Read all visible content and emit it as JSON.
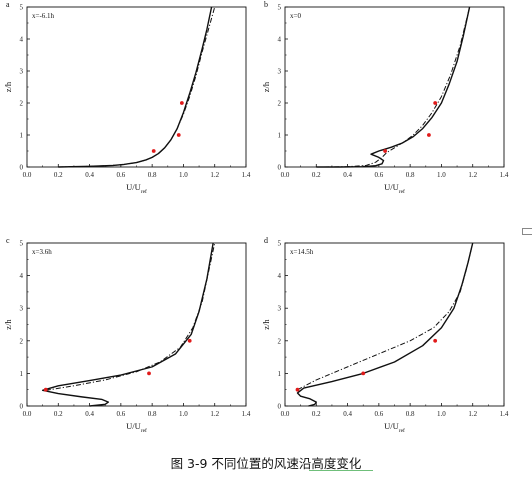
{
  "caption": "图 3-9  不同位置的风速沿高度变化",
  "chart_data": [
    {
      "type": "line",
      "panel": "a",
      "annotation": "x=-6.1h",
      "xlabel": "U/U",
      "xlabel_sub": "ref",
      "ylabel": "z/h",
      "xlim": [
        0,
        1.4
      ],
      "ylim": [
        0,
        5
      ],
      "xticks": [
        "0.0",
        "0.2",
        "0.4",
        "0.6",
        "0.8",
        "1.0",
        "1.2",
        "1.4"
      ],
      "yticks": [
        "0",
        "1",
        "2",
        "3",
        "4",
        "5"
      ],
      "series": [
        {
          "style": "solid",
          "x": [
            0.2,
            0.4,
            0.55,
            0.62,
            0.7,
            0.76,
            0.8,
            0.84,
            0.88,
            0.92,
            0.96,
            1.0,
            1.04,
            1.08,
            1.12,
            1.15,
            1.18
          ],
          "y": [
            0.0,
            0.02,
            0.05,
            0.08,
            0.14,
            0.22,
            0.3,
            0.42,
            0.6,
            0.85,
            1.2,
            1.7,
            2.3,
            2.95,
            3.7,
            4.3,
            5.0
          ]
        },
        {
          "style": "dashdot",
          "x": [
            0.2,
            0.4,
            0.55,
            0.62,
            0.7,
            0.76,
            0.8,
            0.84,
            0.88,
            0.92,
            0.96,
            1.0,
            1.04,
            1.08,
            1.12,
            1.16,
            1.2
          ],
          "y": [
            0.0,
            0.02,
            0.05,
            0.08,
            0.14,
            0.22,
            0.3,
            0.42,
            0.6,
            0.85,
            1.2,
            1.65,
            2.2,
            2.85,
            3.6,
            4.3,
            5.0
          ]
        },
        {
          "style": "points",
          "x": [
            0.81,
            0.97,
            0.99
          ],
          "y": [
            0.5,
            1.0,
            2.0
          ]
        }
      ]
    },
    {
      "type": "line",
      "panel": "b",
      "annotation": "x=0",
      "xlabel": "U/U",
      "xlabel_sub": "ref",
      "ylabel": "z/h",
      "xlim": [
        0,
        1.4
      ],
      "ylim": [
        0,
        5
      ],
      "xticks": [
        "0.0",
        "0.2",
        "0.4",
        "0.6",
        "0.8",
        "1.0",
        "1.2",
        "1.4"
      ],
      "yticks": [
        "0",
        "1",
        "2",
        "3",
        "4",
        "5"
      ],
      "series": [
        {
          "style": "solid",
          "x": [
            0.2,
            0.35,
            0.5,
            0.58,
            0.62,
            0.63,
            0.6,
            0.55,
            0.6,
            0.68,
            0.75,
            0.82,
            0.88,
            0.94,
            1.0,
            1.05,
            1.1,
            1.14,
            1.18
          ],
          "y": [
            0.0,
            0.0,
            0.01,
            0.04,
            0.1,
            0.2,
            0.3,
            0.4,
            0.5,
            0.62,
            0.75,
            0.95,
            1.2,
            1.55,
            2.0,
            2.6,
            3.3,
            4.1,
            5.0
          ]
        },
        {
          "style": "dashdot",
          "x": [
            0.25,
            0.4,
            0.52,
            0.58,
            0.62,
            0.65,
            0.7,
            0.76,
            0.82,
            0.88,
            0.94,
            1.0,
            1.06,
            1.12,
            1.18
          ],
          "y": [
            0.0,
            0.01,
            0.05,
            0.15,
            0.3,
            0.45,
            0.6,
            0.78,
            1.0,
            1.3,
            1.7,
            2.2,
            2.9,
            3.8,
            5.0
          ]
        },
        {
          "style": "points",
          "x": [
            0.64,
            0.92,
            0.96
          ],
          "y": [
            0.5,
            1.0,
            2.0
          ]
        }
      ]
    },
    {
      "type": "line",
      "panel": "c",
      "annotation": "x=3.6h",
      "xlabel": "U/U",
      "xlabel_sub": "ref",
      "ylabel": "z/h",
      "xlim": [
        0,
        1.4
      ],
      "ylim": [
        0,
        5
      ],
      "xticks": [
        "0.0",
        "0.2",
        "0.4",
        "0.6",
        "0.8",
        "1.0",
        "1.2",
        "1.4"
      ],
      "yticks": [
        "0",
        "1",
        "2",
        "3",
        "4",
        "5"
      ],
      "series": [
        {
          "style": "solid",
          "x": [
            0.4,
            0.5,
            0.52,
            0.48,
            0.35,
            0.2,
            0.1,
            0.2,
            0.4,
            0.6,
            0.8,
            0.95,
            1.05,
            1.1,
            1.15,
            1.19
          ],
          "y": [
            0.0,
            0.05,
            0.12,
            0.2,
            0.28,
            0.38,
            0.48,
            0.62,
            0.78,
            0.95,
            1.2,
            1.6,
            2.2,
            2.9,
            3.9,
            5.0
          ]
        },
        {
          "style": "dashdot",
          "x": [
            0.12,
            0.3,
            0.5,
            0.7,
            0.85,
            0.98,
            1.06,
            1.12,
            1.16,
            1.2
          ],
          "y": [
            0.48,
            0.62,
            0.8,
            1.05,
            1.35,
            1.8,
            2.4,
            3.2,
            4.1,
            5.0
          ]
        },
        {
          "style": "points",
          "x": [
            0.12,
            0.78,
            1.04
          ],
          "y": [
            0.5,
            1.0,
            2.0
          ]
        }
      ]
    },
    {
      "type": "line",
      "panel": "d",
      "annotation": "x=14.5h",
      "xlabel": "U/U",
      "xlabel_sub": "ref",
      "ylabel": "z/h",
      "xlim": [
        0,
        1.4
      ],
      "ylim": [
        0,
        5
      ],
      "xticks": [
        "0.0",
        "0.2",
        "0.4",
        "0.6",
        "0.8",
        "1.0",
        "1.2",
        "1.4"
      ],
      "yticks": [
        "0",
        "1",
        "2",
        "3",
        "4",
        "5"
      ],
      "series": [
        {
          "style": "solid",
          "x": [
            0.15,
            0.19,
            0.2,
            0.16,
            0.1,
            0.08,
            0.12,
            0.3,
            0.5,
            0.7,
            0.88,
            1.0,
            1.08,
            1.13,
            1.17,
            1.2
          ],
          "y": [
            0.0,
            0.05,
            0.12,
            0.22,
            0.3,
            0.4,
            0.55,
            0.75,
            1.0,
            1.35,
            1.85,
            2.4,
            3.0,
            3.7,
            4.4,
            5.0
          ]
        },
        {
          "style": "dashdot",
          "x": [
            0.08,
            0.2,
            0.4,
            0.6,
            0.8,
            0.95,
            1.05,
            1.12,
            1.16,
            1.2
          ],
          "y": [
            0.5,
            0.8,
            1.2,
            1.6,
            2.0,
            2.4,
            2.9,
            3.5,
            4.2,
            5.0
          ]
        },
        {
          "style": "points",
          "x": [
            0.08,
            0.5,
            0.96
          ],
          "y": [
            0.5,
            1.0,
            2.0
          ]
        }
      ]
    }
  ]
}
